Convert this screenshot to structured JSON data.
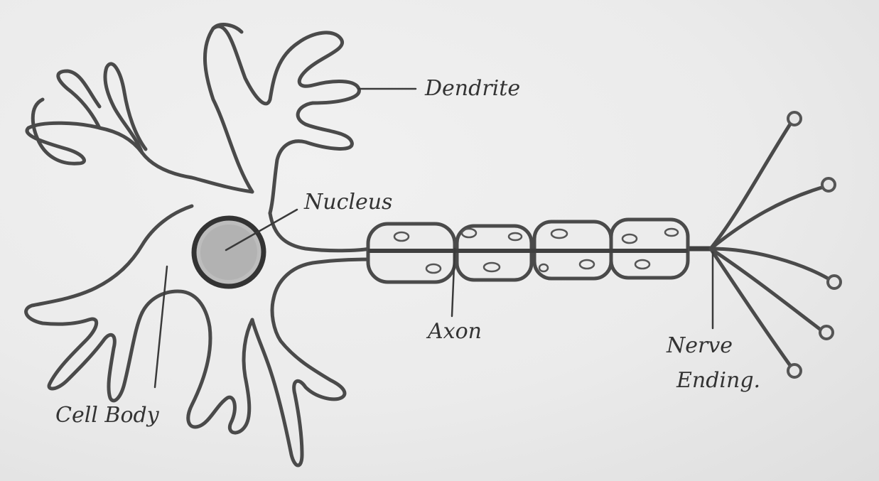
{
  "diagram": {
    "labels": {
      "dendrite": "Dendrite",
      "nucleus": "Nucleus",
      "axon": "Axon",
      "nerve_ending_line1": "Nerve",
      "nerve_ending_line2": "Ending.",
      "cell_body": "Cell Body"
    }
  }
}
